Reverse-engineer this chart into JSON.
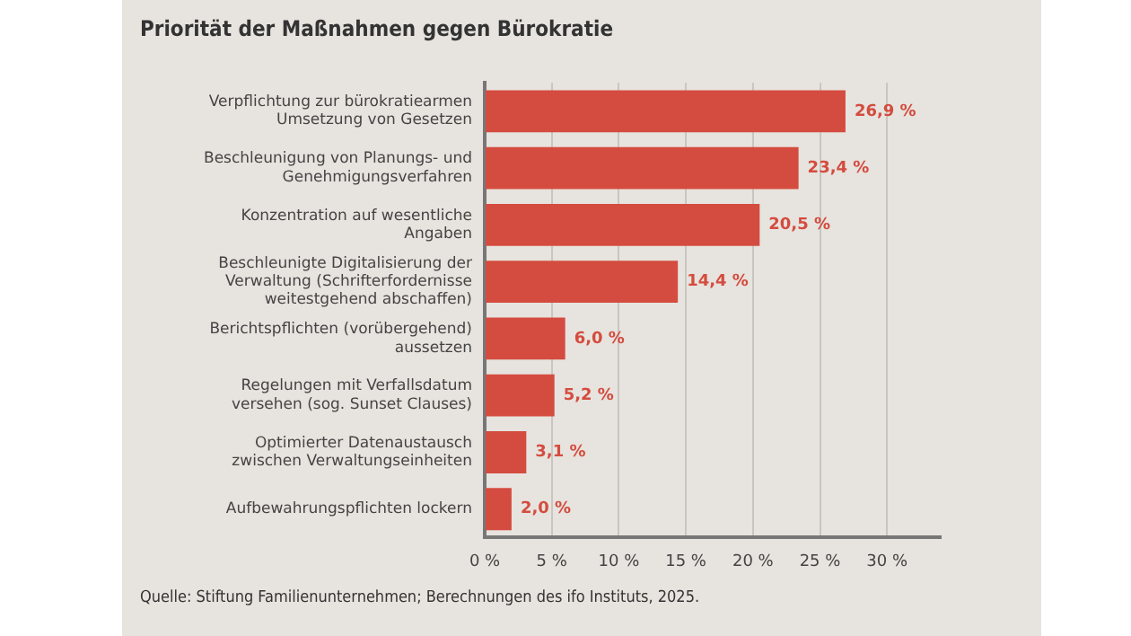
{
  "chart_data": {
    "type": "bar",
    "orientation": "horizontal",
    "title": "Priorität der Maßnahmen gegen Bürokratie",
    "categories": [
      "Verpflichtung zur bürokratiearmen Umsetzung von Gesetzen",
      "Beschleunigung von Planungs- und Genehmigungsverfahren",
      "Konzentration auf wesentliche Angaben",
      "Beschleunigte Digitalisierung der Verwaltung (Schrifterfordernisse weitestgehend abschaffen)",
      "Berichtspflichten (vorübergehend) aussetzen",
      "Regelungen mit Verfallsdatum versehen (sog. Sunset Clauses)",
      "Optimierter Datenaustausch zwischen Verwaltungseinheiten",
      "Aufbewahrungspflichten lockern"
    ],
    "values": [
      26.9,
      23.4,
      20.5,
      14.4,
      6.0,
      5.2,
      3.1,
      2.0
    ],
    "value_labels": [
      "26,9 %",
      "23,4 %",
      "20,5 %",
      "14,4 %",
      "6,0 %",
      "5,2 %",
      "3,1 %",
      "2,0 %"
    ],
    "color": "#d44c3f",
    "xlim": [
      0,
      34
    ],
    "xticks": [
      {
        "value": 0,
        "label": "0 %"
      },
      {
        "value": 5,
        "label": "5 %"
      },
      {
        "value": 10,
        "label": "10 %"
      },
      {
        "value": 15,
        "label": "15 %"
      },
      {
        "value": 20,
        "label": "20 %"
      },
      {
        "value": 25,
        "label": "25 %"
      },
      {
        "value": 30,
        "label": "30 %"
      }
    ],
    "grid": "x",
    "legend": false,
    "annotations": [
      "Quelle: Stiftung Familienunternehmen; Berechnungen des ifo Instituts, 2025."
    ]
  }
}
